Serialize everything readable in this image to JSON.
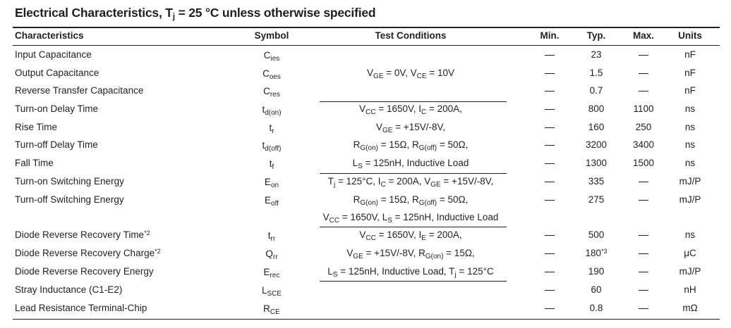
{
  "title": {
    "main": "Electrical Characteristics, T",
    "sub": "j",
    "rest": " = 25 °C unless otherwise specified"
  },
  "headers": {
    "characteristics": "Characteristics",
    "symbol": "Symbol",
    "conditions": "Test Conditions",
    "min": "Min.",
    "typ": "Typ.",
    "max": "Max.",
    "units": "Units"
  },
  "rows": [
    {
      "name": "Input Capacitance",
      "sym": "C",
      "symsub": "ies",
      "min": "—",
      "typ": "23",
      "max": "—",
      "unit": "nF"
    },
    {
      "name": "Output Capacitance",
      "sym": "C",
      "symsub": "oes",
      "min": "—",
      "typ": "1.5",
      "max": "—",
      "unit": "nF"
    },
    {
      "name": "Reverse Transfer Capacitance",
      "sym": "C",
      "symsub": "res",
      "min": "—",
      "typ": "0.7",
      "max": "—",
      "unit": "nF"
    },
    {
      "name": "Turn-on Delay Time",
      "sym": "t",
      "symsub": "d(on)",
      "min": "—",
      "typ": "800",
      "max": "1100",
      "unit": "ns"
    },
    {
      "name": "Rise Time",
      "sym": "t",
      "symsub": "r",
      "min": "—",
      "typ": "160",
      "max": "250",
      "unit": "ns"
    },
    {
      "name": "Turn-off Delay Time",
      "sym": "t",
      "symsub": "d(off)",
      "min": "—",
      "typ": "3200",
      "max": "3400",
      "unit": "ns"
    },
    {
      "name": "Fall Time",
      "sym": "t",
      "symsub": "f",
      "min": "—",
      "typ": "1300",
      "max": "1500",
      "unit": "ns"
    },
    {
      "name": "Turn-on Switching Energy",
      "sym": "E",
      "symsub": "on",
      "min": "—",
      "typ": "335",
      "max": "—",
      "unit": "mJ/P"
    },
    {
      "name": "Turn-off Switching Energy",
      "sym": "E",
      "symsub": "off",
      "min": "—",
      "typ": "275",
      "max": "—",
      "unit": "mJ/P"
    },
    {
      "name": "Diode Reverse Recovery Time",
      "namesup": "*2",
      "sym": "t",
      "symsub": "rr",
      "min": "—",
      "typ": "500",
      "max": "—",
      "unit": "ns"
    },
    {
      "name": "Diode Reverse Recovery Charge",
      "namesup": "*2",
      "sym": "Q",
      "symsub": "rr",
      "min": "—",
      "typ": "180",
      "typsup": "*3",
      "max": "—",
      "unit": "μC"
    },
    {
      "name": "Diode Reverse Recovery Energy",
      "sym": "E",
      "symsub": "rec",
      "min": "—",
      "typ": "190",
      "max": "—",
      "unit": "mJ/P"
    },
    {
      "name": "Stray Inductance (C1-E2)",
      "sym": "L",
      "symsub": "SCE",
      "min": "—",
      "typ": "60",
      "max": "—",
      "unit": "nH"
    },
    {
      "name": "Lead Resistance Terminal-Chip",
      "sym": "R",
      "symsub": "CE",
      "min": "—",
      "typ": "0.8",
      "max": "—",
      "unit": "mΩ"
    }
  ],
  "conditions": [
    [
      {
        "t": "V"
      },
      {
        "sub": "GE"
      },
      {
        "t": " = 0V, V"
      },
      {
        "sub": "CE"
      },
      {
        "t": " = 10V"
      }
    ],
    [
      {
        "t": "V"
      },
      {
        "sub": "CC"
      },
      {
        "t": " = 1650V, I"
      },
      {
        "sub": "C"
      },
      {
        "t": " = 200A,"
      }
    ],
    [
      {
        "t": "V"
      },
      {
        "sub": "GE"
      },
      {
        "t": " = +15V/-8V,"
      }
    ],
    [
      {
        "t": "R"
      },
      {
        "sub": "G(on)"
      },
      {
        "t": " = 15Ω, R"
      },
      {
        "sub": "G(off)"
      },
      {
        "t": " = 50Ω,"
      }
    ],
    [
      {
        "t": "L"
      },
      {
        "sub": "S"
      },
      {
        "t": " = 125nH, Inductive Load"
      }
    ],
    [
      {
        "t": "T"
      },
      {
        "sub": "j"
      },
      {
        "t": " = 125°C, I"
      },
      {
        "sub": "C"
      },
      {
        "t": " = 200A, V"
      },
      {
        "sub": "GE"
      },
      {
        "t": " = +15V/-8V,"
      }
    ],
    [
      {
        "t": "R"
      },
      {
        "sub": "G(on)"
      },
      {
        "t": " = 15Ω, R"
      },
      {
        "sub": "G(off)"
      },
      {
        "t": " = 50Ω,"
      }
    ],
    [
      {
        "t": "V"
      },
      {
        "sub": "CC"
      },
      {
        "t": " = 1650V, L"
      },
      {
        "sub": "S"
      },
      {
        "t": " = 125nH, Inductive Load"
      }
    ],
    [
      {
        "t": "V"
      },
      {
        "sub": "CC"
      },
      {
        "t": " = 1650V, I"
      },
      {
        "sub": "E"
      },
      {
        "t": " = 200A,"
      }
    ],
    [
      {
        "t": "V"
      },
      {
        "sub": "GE"
      },
      {
        "t": " = +15V/-8V, R"
      },
      {
        "sub": "G(on)"
      },
      {
        "t": " = 15Ω,"
      }
    ],
    [
      {
        "t": "L"
      },
      {
        "sub": "S"
      },
      {
        "t": " = 125nH, Inductive Load, T"
      },
      {
        "sub": "j"
      },
      {
        "t": " = 125°C"
      }
    ]
  ]
}
